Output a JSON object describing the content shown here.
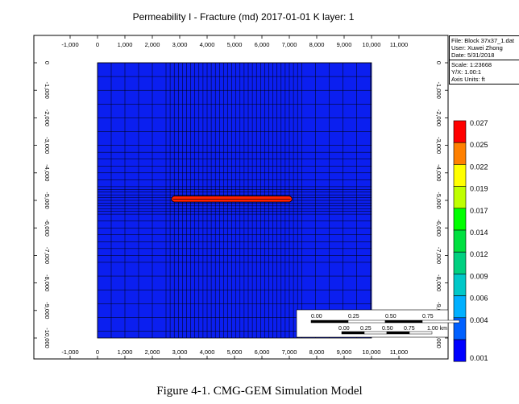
{
  "title": {
    "property": "Permeability I - Fracture (md)",
    "date": "2017-01-01",
    "layer": "K layer: 1"
  },
  "info_box": {
    "file": "File: Block 37x37_1.dat",
    "user": "User:  Xuwei Zhong",
    "date": "Date: 5/31/2018",
    "scale": "Scale: 1:23668",
    "yx": "Y/X: 1.00:1",
    "axis_units": "Axis Units: ft"
  },
  "x_axis": {
    "ticks": [
      -1000,
      0,
      1000,
      2000,
      3000,
      4000,
      5000,
      6000,
      7000,
      8000,
      9000,
      10000,
      11000
    ],
    "labels": [
      "-1,000",
      "0",
      "1,000",
      "2,000",
      "3,000",
      "4,000",
      "5,000",
      "6,000",
      "7,000",
      "8,000",
      "9,000",
      "10,000",
      "11,000"
    ]
  },
  "y_axis": {
    "ticks": [
      0,
      -1000,
      -2000,
      -3000,
      -4000,
      -5000,
      -6000,
      -7000,
      -8000,
      -9000,
      -10000
    ],
    "labels": [
      "0",
      "-1,000",
      "-2,000",
      "-3,000",
      "-4,000",
      "-5,000",
      "-6,000",
      "-7,000",
      "-8,000",
      "-9,000",
      "-10,000"
    ]
  },
  "legend": {
    "labels": [
      "0.027",
      "0.025",
      "0.022",
      "0.019",
      "0.017",
      "0.014",
      "0.012",
      "0.009",
      "0.006",
      "0.004",
      "0.001"
    ],
    "colors": [
      "#ff0000",
      "#ff8000",
      "#ffff00",
      "#bfff00",
      "#00ff00",
      "#00e040",
      "#00d080",
      "#00c8c8",
      "#00b0ff",
      "#0060ff",
      "#0000ff"
    ]
  },
  "scale_bar": {
    "ft_labels": [
      "0.00",
      "0.25",
      "0.50",
      "0.75"
    ],
    "km_labels": [
      "0.00",
      "0.25",
      "0.50",
      "0.75",
      "1.00 km"
    ]
  },
  "grid": {
    "matrix_color": "#0b1ff0",
    "fracture_color": "#ff2000",
    "fracture_x": [
      2700,
      7100
    ],
    "fracture_y": [
      -4900,
      -5000
    ]
  },
  "caption": "Figure 4-1. CMG-GEM Simulation Model"
}
